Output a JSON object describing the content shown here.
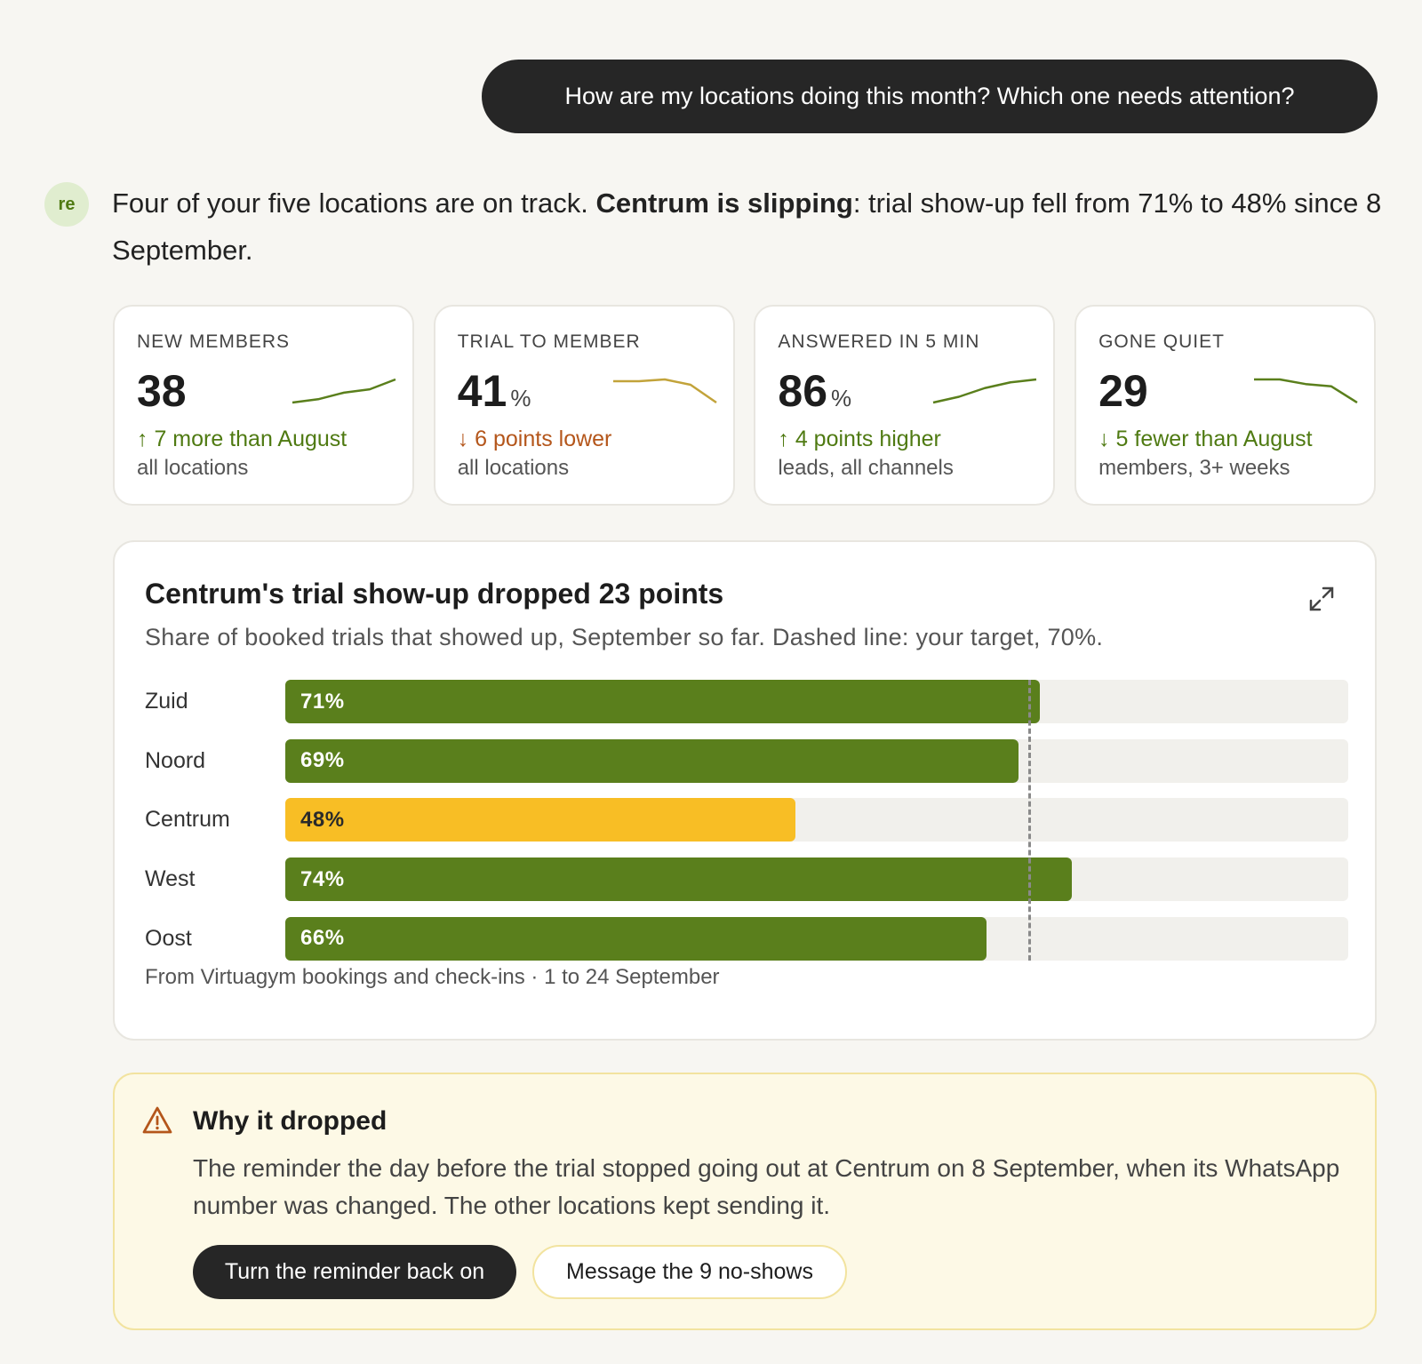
{
  "conversation": {
    "user_message": "How are my locations doing this month? Which one needs attention?",
    "avatar": "re",
    "answer": {
      "before": "Four of your five locations are on track. ",
      "bold": "Centrum is slipping",
      "after": ": trial show-up fell from 71% to 48% since 8 September."
    }
  },
  "kpis": [
    {
      "label": "NEW MEMBERS",
      "value": 38,
      "change": "↑ 7 more than August",
      "change_color": "#4f7a12",
      "note": "all locations",
      "line_color": "#5a7f1c",
      "trend": [
        31,
        32,
        34,
        35,
        38
      ]
    },
    {
      "label": "TRIAL TO MEMBER",
      "value": 41,
      "unit": "%",
      "change": "↓ 6 points lower",
      "change_color": "#b4561b",
      "note": "all locations",
      "line_color": "#c2a33a",
      "trend": [
        47,
        47,
        47.5,
        46,
        41
      ]
    },
    {
      "label": "ANSWERED IN 5 MIN",
      "value": 86,
      "unit": "%",
      "change": "↑ 4 points higher",
      "change_color": "#4f7a12",
      "note": "leads, all channels",
      "line_color": "#5a7f1c",
      "trend": [
        82,
        83,
        84.5,
        85.5,
        86
      ]
    },
    {
      "label": "GONE QUIET",
      "value": 29,
      "change": "↓ 5 fewer than August",
      "change_color": "#4f7a12",
      "note": "members, 3+ weeks",
      "line_color": "#5a7f1c",
      "trend": [
        34,
        34,
        33,
        32.5,
        29
      ]
    }
  ],
  "chart_data": {
    "type": "bar",
    "orientation": "horizontal",
    "title": "Centrum's trial show-up dropped 23 points",
    "subtitle": "Share of booked trials that showed up, September so far. Dashed line: your target, 70%.",
    "categories": [
      "Zuid",
      "Noord",
      "Centrum",
      "West",
      "Oost"
    ],
    "values": [
      71,
      69,
      48,
      74,
      66
    ],
    "value_labels": [
      "71%",
      "69%",
      "48%",
      "74%",
      "66%"
    ],
    "colors": [
      "#5a7f1c",
      "#5a7f1c",
      "#f8be25",
      "#5a7f1c",
      "#5a7f1c"
    ],
    "xlim": [
      0,
      100
    ],
    "target": 70,
    "source": "From Virtuagym bookings and check-ins · 1 to 24 September"
  },
  "callout": {
    "title": "Why it dropped",
    "body": "The reminder the day before the trial stopped going out at Centrum on 8 September, when its WhatsApp number was changed. The other locations kept sending it.",
    "primary_button": "Turn the reminder back on",
    "secondary_button": "Message the 9 no-shows"
  }
}
